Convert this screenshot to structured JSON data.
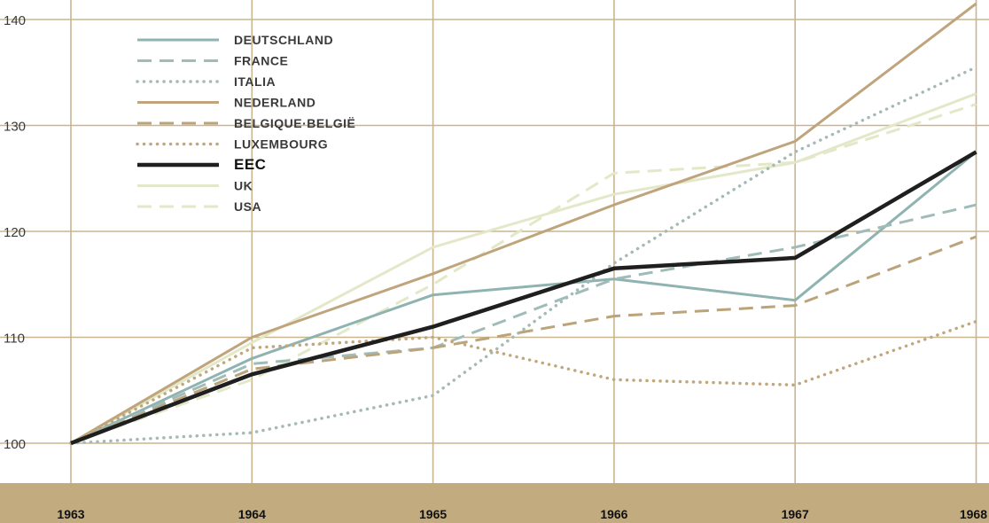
{
  "chart_data": {
    "type": "line",
    "x": [
      "1963",
      "1964",
      "1965",
      "1966",
      "1967",
      "1968"
    ],
    "y_ticks": [
      "100",
      "110",
      "120",
      "130",
      "140"
    ],
    "ylim": [
      100,
      141
    ],
    "grid": true,
    "legend_position": "top-left",
    "series": [
      {
        "name": "DEUTSCHLAND",
        "values": [
          100,
          108,
          114,
          115.5,
          113.5,
          127.5
        ],
        "color": "#8fb3b0",
        "dash": "solid",
        "width": 3
      },
      {
        "name": "FRANCE",
        "values": [
          100,
          107.5,
          109,
          115.5,
          118.5,
          122.5
        ],
        "color": "#9fbcb9",
        "dash": "dashed",
        "width": 3
      },
      {
        "name": "ITALIA",
        "values": [
          100,
          101,
          104.5,
          117,
          127.5,
          135.5
        ],
        "color": "#a5b9b7",
        "dash": "dotted",
        "width": 3.5
      },
      {
        "name": "NEDERLAND",
        "values": [
          100,
          110,
          116,
          122.5,
          128.5,
          141.5
        ],
        "color": "#bfa47c",
        "dash": "solid",
        "width": 3
      },
      {
        "name": "BELGIQUE·BELGIË",
        "values": [
          100,
          107,
          109,
          112,
          113,
          119.5
        ],
        "color": "#bba37a",
        "dash": "dashed",
        "width": 3
      },
      {
        "name": "LUXEMBOURG",
        "values": [
          100,
          109,
          110,
          106,
          105.5,
          111.5
        ],
        "color": "#c0a77c",
        "dash": "dotted",
        "width": 3.5
      },
      {
        "name": "EEC",
        "values": [
          100,
          106.5,
          111,
          116.5,
          117.5,
          127.5
        ],
        "color": "#1f1f1f",
        "dash": "solid",
        "width": 4.5
      },
      {
        "name": "UK",
        "values": [
          100,
          109.5,
          118.5,
          123.5,
          126.5,
          133
        ],
        "color": "#e3e8c9",
        "dash": "solid",
        "width": 3
      },
      {
        "name": "USA",
        "values": [
          100,
          106,
          115,
          125.5,
          126.5,
          132
        ],
        "color": "#e3e8c9",
        "dash": "dashed",
        "width": 3
      }
    ]
  },
  "colors": {
    "grid": "#c9b58f",
    "axis_band": "#c2ac7f",
    "background": "#ffffff"
  }
}
